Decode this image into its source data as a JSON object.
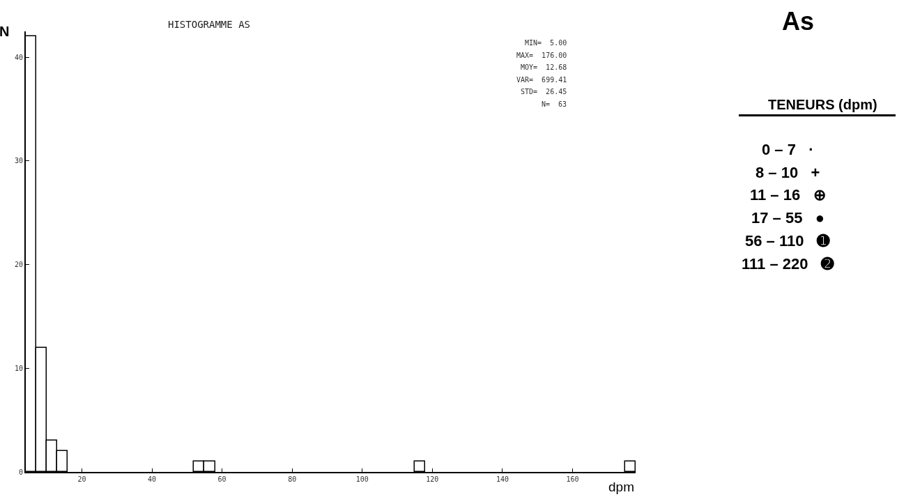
{
  "chart_data": {
    "type": "histogram",
    "title": "HISTOGRAMME AS",
    "xlabel": "dpm",
    "ylabel": "N",
    "bins": [
      4,
      7,
      10,
      13,
      16,
      19,
      22,
      25,
      28,
      31,
      34,
      37,
      40,
      43,
      46,
      49,
      52,
      55,
      58,
      61,
      64,
      67,
      70,
      73,
      76,
      79,
      82,
      85,
      88,
      91,
      94,
      97,
      100,
      103,
      106,
      109,
      112,
      115,
      118,
      121,
      124,
      127,
      130,
      133,
      136,
      139,
      142,
      145,
      148,
      151,
      154,
      157,
      160,
      163,
      166,
      169,
      172,
      175,
      178
    ],
    "values": [
      42,
      12,
      3,
      2,
      0,
      0,
      0,
      0,
      0,
      0,
      0,
      0,
      0,
      0,
      0,
      0,
      1,
      1,
      0,
      0,
      0,
      0,
      0,
      0,
      0,
      0,
      0,
      0,
      0,
      0,
      0,
      0,
      0,
      0,
      0,
      0,
      0,
      1,
      0,
      0,
      0,
      0,
      0,
      0,
      0,
      0,
      0,
      0,
      0,
      0,
      0,
      0,
      0,
      0,
      0,
      0,
      0,
      1
    ],
    "color": "#ffffff",
    "xlim": [
      4,
      178
    ],
    "xticks": [
      20,
      40,
      60,
      80,
      100,
      120,
      140,
      160
    ],
    "ylim": [
      0,
      42.5
    ],
    "yticks": [
      0,
      10,
      20,
      30,
      40
    ],
    "legend": false,
    "annotations": [
      "MIN=  5.00",
      "MAX=  176.00",
      "MOY=  12.68",
      "VAR=  699.41",
      "STD=  26.45",
      "N=  63",
      "As",
      "TENEURS (dpm)",
      "0 – 7   ·",
      "8 – 10   +",
      "11 – 16   ⊕",
      "17 – 55   ●",
      "56 – 110   ➊",
      "111 – 220   ➋"
    ]
  }
}
